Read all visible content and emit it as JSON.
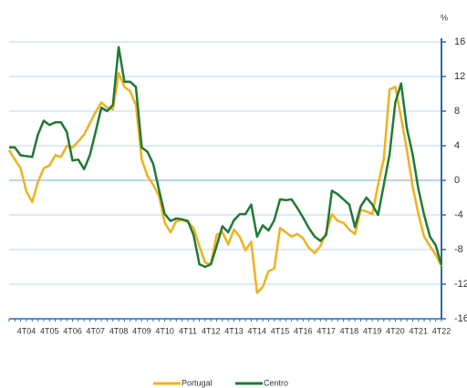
{
  "chart_data": {
    "type": "line",
    "unit_label": "%",
    "categories": [
      null,
      null,
      null,
      "4T04",
      null,
      null,
      null,
      "4T05",
      null,
      null,
      null,
      "4T06",
      null,
      null,
      null,
      "4T07",
      null,
      null,
      null,
      "4T08",
      null,
      null,
      null,
      "4T09",
      null,
      null,
      null,
      "4T10",
      null,
      null,
      null,
      "4T11",
      null,
      null,
      null,
      "4T12",
      null,
      null,
      null,
      "4T13",
      null,
      null,
      null,
      "4T14",
      null,
      null,
      null,
      "4T15",
      null,
      null,
      null,
      "4T16",
      null,
      null,
      null,
      "4T17",
      null,
      null,
      null,
      "4T18",
      null,
      null,
      null,
      "4T19",
      null,
      null,
      null,
      "4T20",
      null,
      null,
      null,
      "4T21",
      null,
      null,
      null,
      "4T22"
    ],
    "series": [
      {
        "name": "Portugal",
        "color": "#f2b11c",
        "values": [
          3.5,
          2.4,
          1.4,
          -1.3,
          -2.5,
          -0.2,
          1.4,
          1.7,
          2.9,
          2.7,
          4.0,
          3.8,
          4.5,
          5.3,
          6.6,
          7.9,
          9.0,
          8.4,
          8.2,
          12.4,
          10.8,
          10.3,
          8.7,
          2.4,
          0.5,
          -0.5,
          -1.8,
          -4.9,
          -6.0,
          -4.7,
          -4.6,
          -4.8,
          -5.5,
          -7.6,
          -9.5,
          -9.7,
          -6.3,
          -6.0,
          -7.4,
          -5.7,
          -6.5,
          -8.1,
          -7.1,
          -13.0,
          -12.3,
          -10.5,
          -10.2,
          -5.5,
          -6.0,
          -6.5,
          -6.2,
          -6.7,
          -7.8,
          -8.4,
          -7.6,
          -6.0,
          -3.9,
          -4.7,
          -4.9,
          -5.7,
          -6.2,
          -3.4,
          -3.6,
          -3.9,
          -0.5,
          2.5,
          10.5,
          10.8,
          7.2,
          3.5,
          -0.7,
          -3.9,
          -6.5,
          -7.6,
          -8.6,
          -9.9
        ]
      },
      {
        "name": "Centro",
        "color": "#1f7a34",
        "values": [
          3.8,
          3.8,
          2.9,
          2.8,
          2.7,
          5.3,
          6.9,
          6.4,
          6.7,
          6.7,
          5.6,
          2.3,
          2.4,
          1.3,
          2.9,
          5.6,
          8.4,
          8.0,
          8.7,
          15.4,
          11.4,
          11.4,
          10.8,
          3.8,
          3.3,
          1.9,
          -1.1,
          -3.9,
          -4.7,
          -4.4,
          -4.5,
          -4.7,
          -6.3,
          -9.7,
          -10.0,
          -9.7,
          -7.6,
          -5.3,
          -6.0,
          -4.6,
          -3.9,
          -3.9,
          -2.8,
          -6.5,
          -5.2,
          -5.8,
          -4.6,
          -2.2,
          -2.3,
          -2.2,
          -3.2,
          -4.3,
          -5.5,
          -6.5,
          -7.0,
          -6.3,
          -1.2,
          -1.6,
          -2.2,
          -2.8,
          -5.4,
          -3.0,
          -2.0,
          -2.8,
          -4.0,
          -0.5,
          3.0,
          9.0,
          11.2,
          6.0,
          3.0,
          -1.0,
          -4.0,
          -6.5,
          -7.5,
          -9.8
        ]
      }
    ],
    "ylim": [
      -16,
      16
    ],
    "yticks": [
      -16,
      -12,
      -8,
      -4,
      0,
      4,
      8,
      12,
      16
    ],
    "grid": true,
    "y_axis_side": "right",
    "legend": "bottom"
  }
}
